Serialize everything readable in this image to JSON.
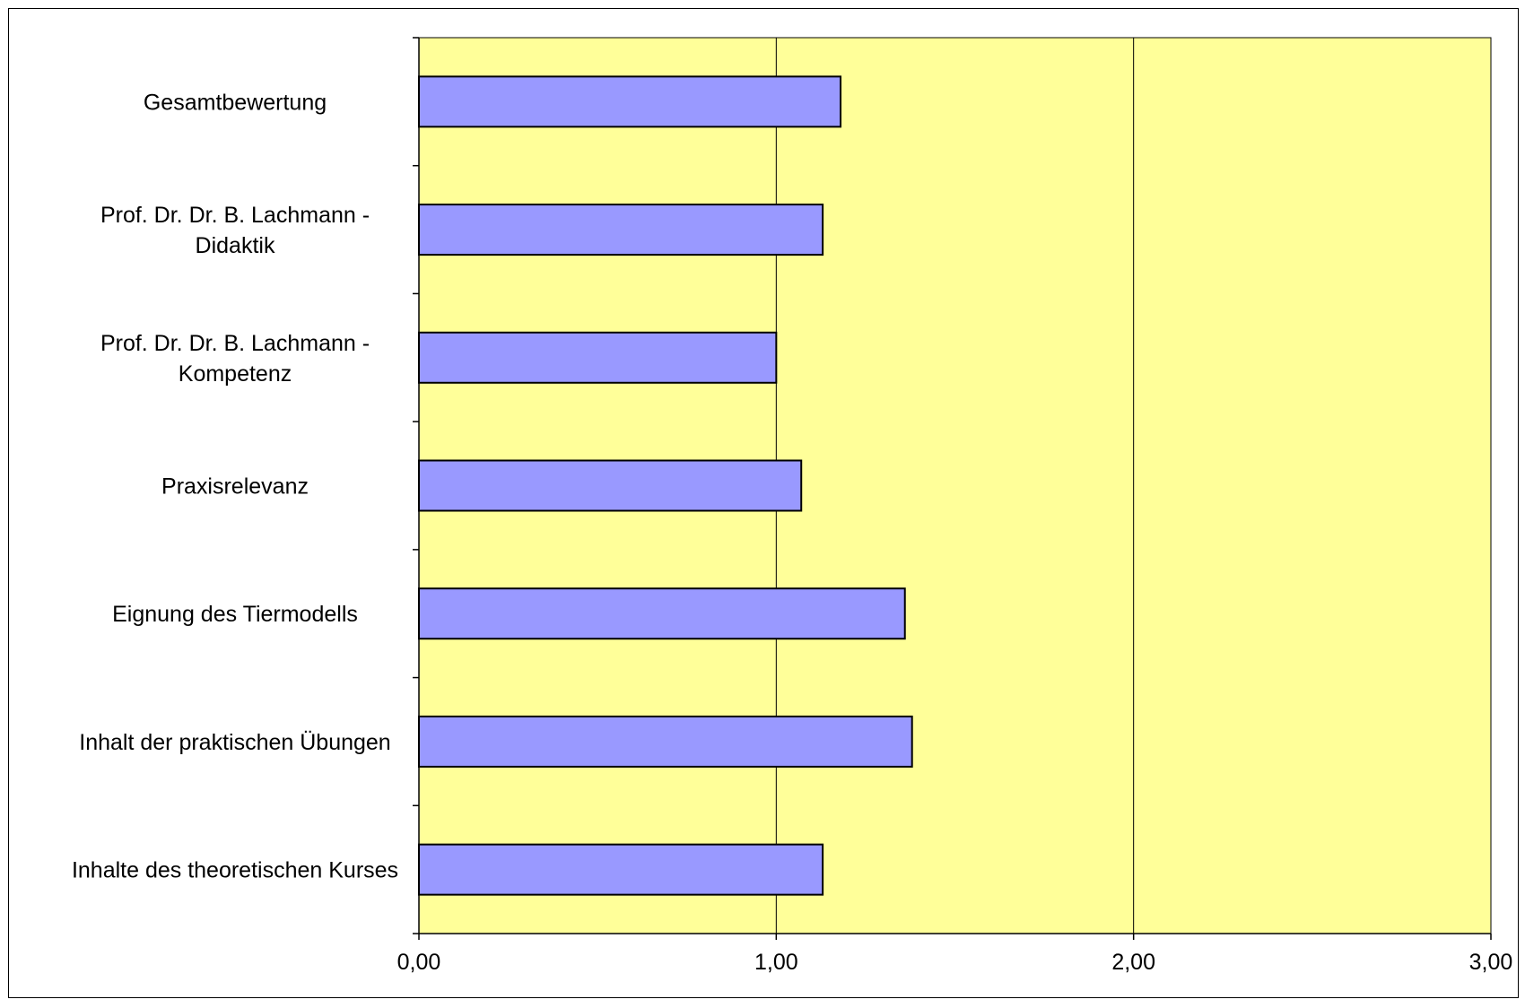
{
  "chart_data": {
    "type": "bar",
    "orientation": "horizontal",
    "title": "",
    "xlabel": "",
    "ylabel": "",
    "categories": [
      [
        "Gesamtbewertung"
      ],
      [
        "Prof. Dr. Dr. B. Lachmann -",
        "Didaktik"
      ],
      [
        "Prof. Dr. Dr. B. Lachmann -",
        "Kompetenz"
      ],
      [
        "Praxisrelevanz"
      ],
      [
        "Eignung des Tiermodells"
      ],
      [
        "Inhalt der praktischen Übungen"
      ],
      [
        "Inhalte des theoretischen Kurses"
      ]
    ],
    "values": [
      1.18,
      1.13,
      1.0,
      1.07,
      1.36,
      1.38,
      1.13
    ],
    "xlim": [
      0,
      3
    ],
    "x_ticks": [
      "0,00",
      "1,00",
      "2,00",
      "3,00"
    ],
    "grid": true,
    "legend": "none",
    "colors": {
      "plot_background": "#ffff99",
      "bar_fill": "#9999ff",
      "bar_stroke": "#000000",
      "grid": "#000000"
    }
  }
}
